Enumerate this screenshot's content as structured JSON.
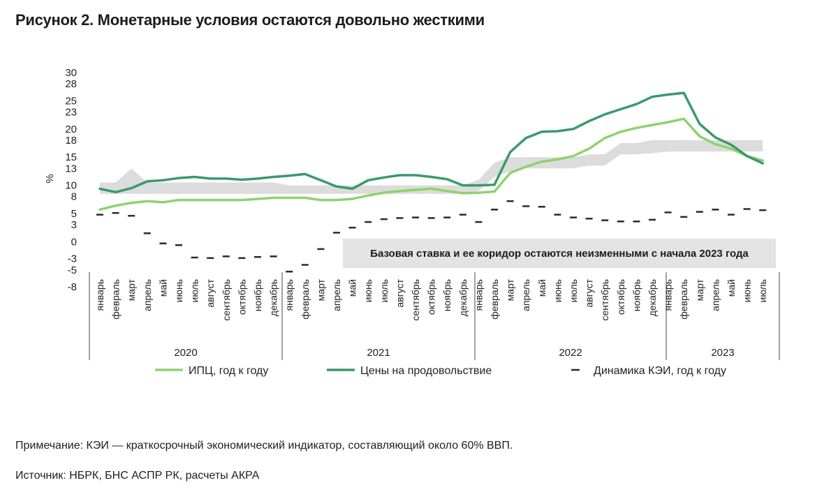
{
  "figure_title": "Рисунок 2. Монетарные условия остаются довольно жесткими",
  "note": "Примечание: КЭИ — краткосрочный экономический индикатор, составляющий около 60% ВВП.",
  "source": "Источник: НБРК, БНС АСПР РК, расчеты АКРА",
  "colors": {
    "cpi": "#8fd26e",
    "food": "#3a9a6a",
    "kei": "#2a2a2a",
    "corridor": "#dcdcdc",
    "annotation_bg": "#e3e3e3"
  },
  "chart_data": {
    "type": "line",
    "ylabel": "%",
    "y_ticks": [
      "30",
      "28",
      "25",
      "23",
      "20",
      "18",
      "15",
      "13",
      "10",
      "8",
      "5",
      "3",
      "0",
      "-3",
      "-5",
      "-8"
    ],
    "ylim": [
      -8,
      30
    ],
    "months": [
      "январь",
      "февраль",
      "март",
      "апрель",
      "май",
      "июнь",
      "июль",
      "август",
      "сентябрь",
      "октябрь",
      "ноябрь",
      "декабрь",
      "январь",
      "февраль",
      "март",
      "апрель",
      "май",
      "июнь",
      "июль",
      "август",
      "сентябрь",
      "октябрь",
      "ноябрь",
      "декабрь",
      "январь",
      "февраль",
      "март",
      "апрель",
      "май",
      "июнь",
      "июль",
      "август",
      "сентябрь",
      "октябрь",
      "ноябрь",
      "декабрь",
      "январь",
      "февраль",
      "март",
      "апрель",
      "май",
      "июнь",
      "июль"
    ],
    "years": [
      {
        "label": "2020",
        "start": 0,
        "end": 11
      },
      {
        "label": "2021",
        "start": 12,
        "end": 23
      },
      {
        "label": "2022",
        "start": 24,
        "end": 35
      },
      {
        "label": "2023",
        "start": 36,
        "end": 42
      }
    ],
    "series": [
      {
        "name": "ИПЦ, год к году",
        "style": "line",
        "values": [
          5.7,
          6.4,
          6.9,
          7.2,
          7.0,
          7.4,
          7.4,
          7.4,
          7.4,
          7.4,
          7.6,
          7.8,
          7.8,
          7.8,
          7.4,
          7.4,
          7.6,
          8.2,
          8.7,
          9.0,
          9.2,
          9.4,
          9.0,
          8.6,
          8.7,
          8.9,
          12.2,
          13.3,
          14.2,
          14.6,
          15.2,
          16.5,
          18.4,
          19.5,
          20.2,
          20.7,
          21.2,
          21.8,
          18.7,
          17.3,
          16.5,
          15.2,
          14.4
        ]
      },
      {
        "name": "Цены на продовольствие",
        "style": "line",
        "values": [
          9.4,
          8.8,
          9.5,
          10.7,
          10.9,
          11.3,
          11.5,
          11.2,
          11.2,
          11.0,
          11.2,
          11.5,
          11.7,
          12.0,
          10.9,
          9.8,
          9.4,
          10.9,
          11.4,
          11.8,
          11.8,
          11.5,
          11.1,
          10.0,
          10.0,
          10.1,
          15.9,
          18.4,
          19.5,
          19.6,
          20.0,
          21.4,
          22.6,
          23.5,
          24.4,
          25.7,
          26.1,
          26.4,
          20.9,
          18.5,
          17.2,
          15.2,
          13.9
        ]
      },
      {
        "name": "Динамика КЭИ, год к году",
        "style": "dash",
        "values": [
          4.8,
          5.1,
          4.6,
          1.5,
          -0.3,
          -0.6,
          -2.8,
          -2.9,
          -2.6,
          -2.9,
          -2.7,
          -2.6,
          -5.3,
          -4.1,
          -1.3,
          1.6,
          2.5,
          3.5,
          4.0,
          4.2,
          4.3,
          4.2,
          4.3,
          4.8,
          3.5,
          5.7,
          7.2,
          6.3,
          6.2,
          4.8,
          4.3,
          4.1,
          3.8,
          3.6,
          3.6,
          3.9,
          5.2,
          4.4,
          5.3,
          5.7,
          4.8,
          5.8,
          5.6
        ]
      }
    ],
    "corridor": {
      "name": "коридор базовой ставки",
      "lower": [
        8.5,
        8.5,
        8.5,
        8.5,
        8.5,
        8.5,
        8.5,
        8.5,
        8.5,
        8.5,
        8.5,
        8.5,
        8.5,
        8.5,
        8.5,
        8.5,
        8.5,
        8.5,
        8.5,
        8.5,
        8.5,
        8.5,
        8.5,
        8.5,
        9.0,
        11.5,
        12.5,
        13.0,
        13.0,
        13.0,
        13.0,
        13.5,
        13.5,
        15.5,
        15.5,
        15.7,
        16.0,
        16.0,
        16.0,
        16.0,
        16.0,
        16.0,
        16.0
      ],
      "upper": [
        10.5,
        10.5,
        13.0,
        10.5,
        10.5,
        10.5,
        10.5,
        10.5,
        10.5,
        10.5,
        10.5,
        10.5,
        10.0,
        10.0,
        10.0,
        10.0,
        10.0,
        10.0,
        10.0,
        10.0,
        10.0,
        10.0,
        10.0,
        10.0,
        11.0,
        14.0,
        15.0,
        15.0,
        15.0,
        15.0,
        15.0,
        15.5,
        15.5,
        17.5,
        17.5,
        18.0,
        18.0,
        18.0,
        18.0,
        18.0,
        18.0,
        18.0,
        18.0
      ]
    },
    "annotation": "Базовая ставка и ее коридор остаются неизменными с начала 2023 года",
    "legend": [
      "ИПЦ, год к году",
      "Цены на продовольствие",
      "Динамика КЭИ, год к году"
    ],
    "legend_position": "bottom",
    "grid": false
  }
}
